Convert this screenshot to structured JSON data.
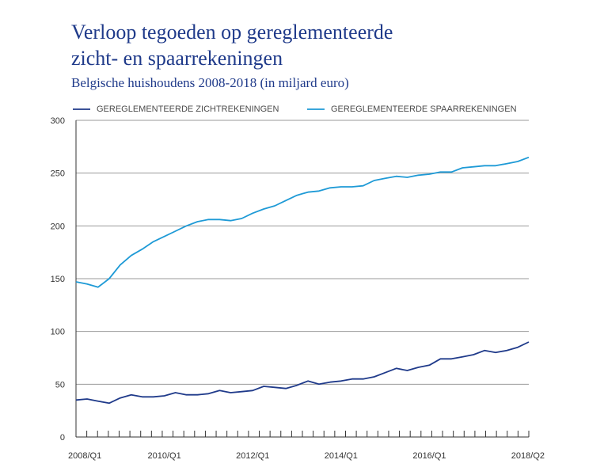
{
  "chart_data": {
    "type": "line",
    "title": "Verloop tegoeden op gereglementeerde\nzicht- en spaarrekeningen",
    "title_lines": [
      "Verloop tegoeden op gereglementeerde",
      "zicht- en spaarrekeningen"
    ],
    "subtitle": "Belgische huishoudens 2008-2018 (in miljard euro)",
    "xlabel": "",
    "ylabel": "",
    "ylim": [
      0,
      300
    ],
    "yticks": [
      0,
      50,
      100,
      150,
      200,
      250,
      300
    ],
    "x_tick_labels": [
      "2008/Q1",
      "2010/Q1",
      "2012/Q1",
      "2014/Q1",
      "2016/Q1",
      "2018/Q2"
    ],
    "x_tick_label_quarter_index": [
      0,
      8,
      16,
      24,
      32,
      41
    ],
    "legend_position": "top",
    "grid": "horizontal",
    "series": [
      {
        "name": "GEREGLEMENTEERDE ZICHTREKENINGEN",
        "color": "#1f3a8a",
        "values": [
          35,
          36,
          34,
          32,
          37,
          40,
          38,
          38,
          39,
          42,
          40,
          40,
          41,
          44,
          42,
          43,
          44,
          48,
          47,
          46,
          49,
          53,
          50,
          52,
          53,
          55,
          55,
          57,
          61,
          65,
          63,
          66,
          68,
          74,
          74,
          76,
          78,
          82,
          80,
          82,
          85,
          90
        ]
      },
      {
        "name": "GEREGLEMENTEERDE SPAARREKENINGEN",
        "color": "#1e9ad6",
        "values": [
          147,
          145,
          142,
          150,
          163,
          172,
          178,
          185,
          190,
          195,
          200,
          204,
          206,
          206,
          205,
          207,
          212,
          216,
          219,
          224,
          229,
          232,
          233,
          236,
          237,
          237,
          238,
          243,
          245,
          247,
          246,
          248,
          249,
          251,
          251,
          255,
          256,
          257,
          257,
          259,
          261,
          265
        ]
      }
    ]
  }
}
